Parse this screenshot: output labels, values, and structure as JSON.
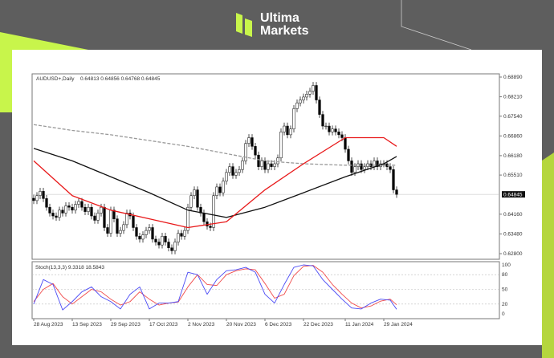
{
  "brand": {
    "line1": "Ultima",
    "line2": "Markets",
    "accent": "#c8f54b",
    "background": "#5e5e5e"
  },
  "chart_data": {
    "type": "candlestick",
    "symbol_label": "AUDUSD+,Daily",
    "ohlc_label": "0.64813 0.64856 0.64768 0.64845",
    "last_price_label": "0.64845",
    "y_ticks": [
      "0.68890",
      "0.68210",
      "0.67540",
      "0.66860",
      "0.66180",
      "0.65510",
      "0.64160",
      "0.63480",
      "0.62800"
    ],
    "ylim": [
      0.628,
      0.6889
    ],
    "x_ticks": [
      {
        "label": "28 Aug 2023",
        "bar": 0
      },
      {
        "label": "13 Sep 2023",
        "bar": 12
      },
      {
        "label": "29 Sep 2023",
        "bar": 24
      },
      {
        "label": "17 Oct 2023",
        "bar": 36
      },
      {
        "label": "2 Nov 2023",
        "bar": 48
      },
      {
        "label": "20 Nov 2023",
        "bar": 60
      },
      {
        "label": "6 Dec 2023",
        "bar": 72
      },
      {
        "label": "22 Dec 2023",
        "bar": 84
      },
      {
        "label": "11 Jan 2024",
        "bar": 97
      },
      {
        "label": "29 Jan 2024",
        "bar": 109
      }
    ],
    "closes": [
      0.6463,
      0.648,
      0.6495,
      0.647,
      0.644,
      0.642,
      0.641,
      0.6405,
      0.643,
      0.642,
      0.6445,
      0.644,
      0.643,
      0.645,
      0.646,
      0.644,
      0.6425,
      0.644,
      0.641,
      0.6395,
      0.642,
      0.644,
      0.637,
      0.635,
      0.643,
      0.64,
      0.635,
      0.636,
      0.638,
      0.642,
      0.641,
      0.637,
      0.634,
      0.633,
      0.6345,
      0.636,
      0.637,
      0.633,
      0.632,
      0.631,
      0.634,
      0.632,
      0.63,
      0.629,
      0.632,
      0.635,
      0.634,
      0.636,
      0.644,
      0.648,
      0.65,
      0.644,
      0.642,
      0.639,
      0.6375,
      0.637,
      0.648,
      0.651,
      0.649,
      0.653,
      0.656,
      0.658,
      0.655,
      0.656,
      0.657,
      0.66,
      0.666,
      0.668,
      0.665,
      0.662,
      0.658,
      0.66,
      0.657,
      0.659,
      0.658,
      0.659,
      0.661,
      0.67,
      0.672,
      0.669,
      0.671,
      0.678,
      0.68,
      0.681,
      0.682,
      0.683,
      0.684,
      0.686,
      0.681,
      0.676,
      0.672,
      0.672,
      0.67,
      0.671,
      0.67,
      0.669,
      0.668,
      0.664,
      0.66,
      0.656,
      0.658,
      0.659,
      0.657,
      0.658,
      0.659,
      0.658,
      0.66,
      0.658,
      0.659,
      0.659,
      0.658,
      0.657,
      0.65,
      0.64845
    ],
    "moving_averages": {
      "sample_bars": [
        0,
        12,
        24,
        36,
        48,
        60,
        72,
        84,
        97,
        109,
        113
      ],
      "series": [
        {
          "color": "#999999",
          "style": "dashed",
          "values": [
            0.6725,
            0.6705,
            0.669,
            0.667,
            0.665,
            0.6625,
            0.66,
            0.659,
            0.6585,
            0.6585,
            0.6585
          ]
        },
        {
          "color": "#111111",
          "style": "solid",
          "values": [
            0.6643,
            0.66,
            0.6545,
            0.649,
            0.643,
            0.6405,
            0.644,
            0.649,
            0.6545,
            0.659,
            0.6615
          ]
        },
        {
          "color": "#e8191a",
          "style": "solid",
          "values": [
            0.66,
            0.648,
            0.643,
            0.64,
            0.637,
            0.639,
            0.65,
            0.659,
            0.668,
            0.668,
            0.665
          ]
        }
      ]
    },
    "stochastic": {
      "label": "Stoch(13,3,3) 9.3318 18.5843",
      "levels": [
        "100",
        "80",
        "50",
        "20",
        "0"
      ],
      "sample_step_bars": 3,
      "k": {
        "color": "#4a4af5",
        "values": [
          20,
          70,
          60,
          8,
          25,
          45,
          55,
          35,
          25,
          10,
          40,
          55,
          10,
          22,
          22,
          25,
          85,
          80,
          40,
          70,
          88,
          90,
          95,
          85,
          40,
          22,
          60,
          95,
          100,
          98,
          70,
          50,
          30,
          12,
          10,
          22,
          30,
          28,
          9.33
        ]
      },
      "d": {
        "color": "#f04a4a",
        "values": [
          25,
          50,
          62,
          35,
          20,
          35,
          50,
          45,
          30,
          18,
          25,
          45,
          30,
          18,
          22,
          24,
          55,
          80,
          60,
          58,
          80,
          88,
          92,
          90,
          62,
          32,
          40,
          78,
          97,
          99,
          85,
          60,
          40,
          22,
          12,
          16,
          26,
          30,
          18.58
        ]
      }
    }
  }
}
